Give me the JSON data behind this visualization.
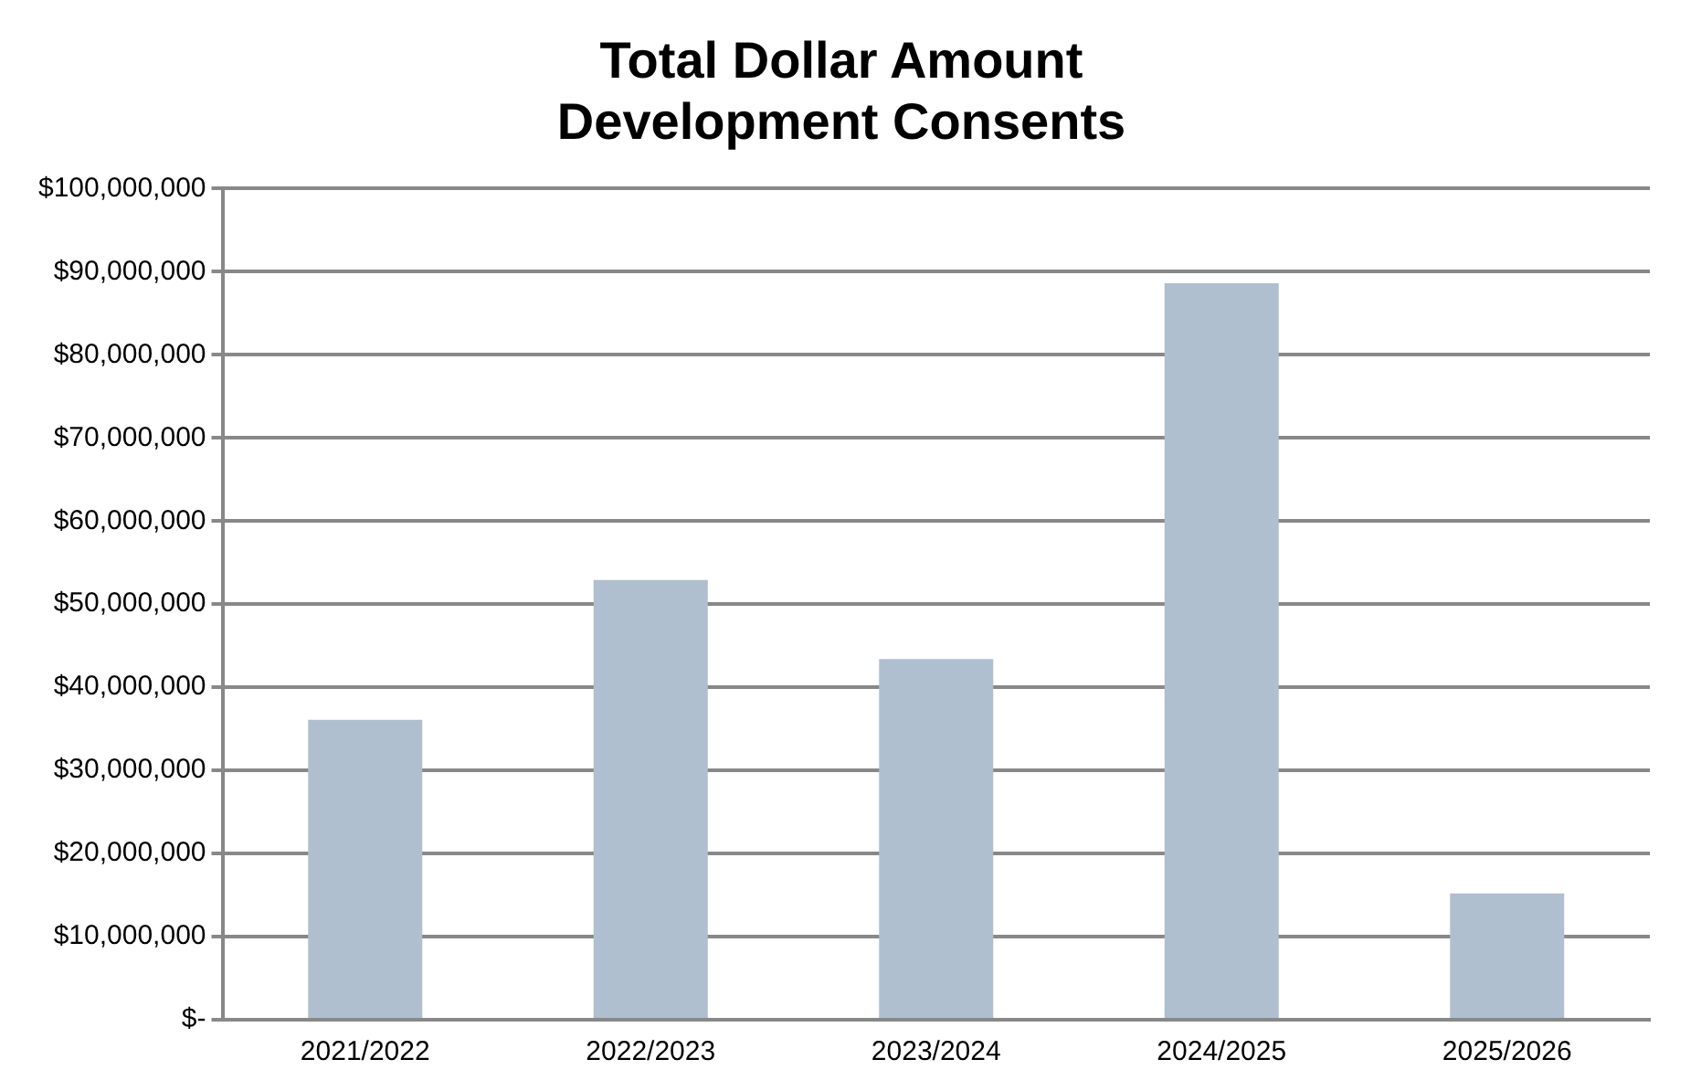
{
  "chart_data": {
    "type": "bar",
    "title": "Total Dollar Amount\nDevelopment Consents",
    "categories": [
      "2021/2022",
      "2022/2023",
      "2023/2024",
      "2024/2025",
      "2025/2026"
    ],
    "values": [
      36100000,
      52900000,
      43400000,
      88600000,
      15200000
    ],
    "color": "#b0bfcf",
    "ylim": [
      0,
      100000000
    ],
    "yticks": [
      {
        "value": 0,
        "label": "$-"
      },
      {
        "value": 10000000,
        "label": "$10,000,000"
      },
      {
        "value": 20000000,
        "label": "$20,000,000"
      },
      {
        "value": 30000000,
        "label": "$30,000,000"
      },
      {
        "value": 40000000,
        "label": "$40,000,000"
      },
      {
        "value": 50000000,
        "label": "$50,000,000"
      },
      {
        "value": 60000000,
        "label": "$60,000,000"
      },
      {
        "value": 70000000,
        "label": "$70,000,000"
      },
      {
        "value": 80000000,
        "label": "$80,000,000"
      },
      {
        "value": 90000000,
        "label": "$90,000,000"
      },
      {
        "value": 100000000,
        "label": "$100,000,000"
      }
    ],
    "grid": "y"
  }
}
